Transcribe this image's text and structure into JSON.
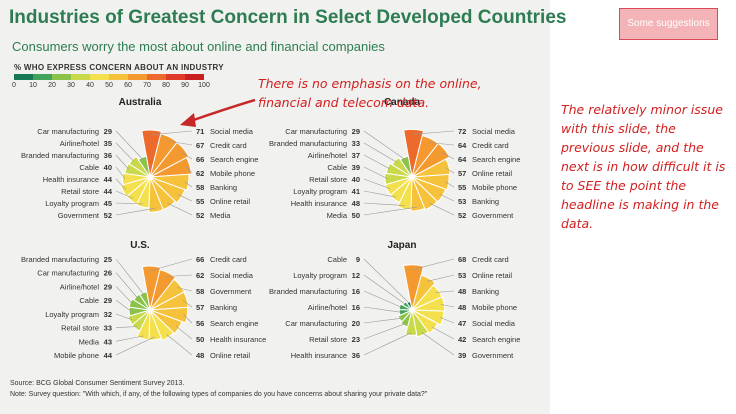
{
  "figure": {
    "title": "Industries of Greatest Concern in Select Developed Countries",
    "subtitle": "Consumers worry the most about online and financial companies",
    "scale_label": "% WHO EXPRESS CONCERN ABOUT AN INDUSTRY",
    "scale_ticks": [
      "0",
      "10",
      "20",
      "30",
      "40",
      "50",
      "60",
      "70",
      "80",
      "90",
      "100"
    ],
    "scale_colors": [
      "#157a54",
      "#43a35c",
      "#8bc34a",
      "#c9d94a",
      "#f4e04d",
      "#f6c23b",
      "#f3992f",
      "#ec6a2c",
      "#e03a2a",
      "#c91f1f"
    ],
    "source": "Source: BCG Global Consumer Sentiment Survey 2013.",
    "note": "Note: Survey question: \"With which, if any, of the following types of companies do you have concerns about sharing your private data?\""
  },
  "annotations": {
    "suggest_button": "Some suggestions",
    "chart_note": "There is no emphasis on the online, financial and telecom data.",
    "side_note": "The relatively minor issue with this slide, the previous slide, and the next is in how difficult it is to SEE the point the headline is making in the data."
  },
  "chart_data": [
    {
      "type": "polar-bar",
      "title": "Australia",
      "left": [
        {
          "label": "Car manufacturing",
          "value": 29
        },
        {
          "label": "Airline/hotel",
          "value": 35
        },
        {
          "label": "Branded manufacturing",
          "value": 36
        },
        {
          "label": "Cable",
          "value": 40
        },
        {
          "label": "Health insurance",
          "value": 44
        },
        {
          "label": "Retail store",
          "value": 44
        },
        {
          "label": "Loyalty program",
          "value": 45
        },
        {
          "label": "Government",
          "value": 52
        }
      ],
      "right": [
        {
          "label": "Social media",
          "value": 71
        },
        {
          "label": "Credit card",
          "value": 67
        },
        {
          "label": "Search engine",
          "value": 66
        },
        {
          "label": "Mobile phone",
          "value": 62
        },
        {
          "label": "Banking",
          "value": 58
        },
        {
          "label": "Online retail",
          "value": 55
        },
        {
          "label": "Media",
          "value": 52
        }
      ]
    },
    {
      "type": "polar-bar",
      "title": "Canada",
      "left": [
        {
          "label": "Car manufacturing",
          "value": 29
        },
        {
          "label": "Branded manufacturing",
          "value": 33
        },
        {
          "label": "Airline/hotel",
          "value": 37
        },
        {
          "label": "Cable",
          "value": 39
        },
        {
          "label": "Retail store",
          "value": 40
        },
        {
          "label": "Loyalty program",
          "value": 41
        },
        {
          "label": "Health insurance",
          "value": 48
        },
        {
          "label": "Media",
          "value": 50
        }
      ],
      "right": [
        {
          "label": "Social media",
          "value": 72
        },
        {
          "label": "Credit card",
          "value": 64
        },
        {
          "label": "Search engine",
          "value": 64
        },
        {
          "label": "Online retail",
          "value": 57
        },
        {
          "label": "Mobile phone",
          "value": 55
        },
        {
          "label": "Banking",
          "value": 53
        },
        {
          "label": "Government",
          "value": 52
        }
      ]
    },
    {
      "type": "polar-bar",
      "title": "U.S.",
      "left": [
        {
          "label": "Branded manufacturing",
          "value": 25
        },
        {
          "label": "Car manufacturing",
          "value": 26
        },
        {
          "label": "Airline/hotel",
          "value": 29
        },
        {
          "label": "Cable",
          "value": 29
        },
        {
          "label": "Loyalty program",
          "value": 32
        },
        {
          "label": "Retail store",
          "value": 33
        },
        {
          "label": "Media",
          "value": 43
        },
        {
          "label": "Mobile phone",
          "value": 44
        }
      ],
      "right": [
        {
          "label": "Credit card",
          "value": 66
        },
        {
          "label": "Social media",
          "value": 62
        },
        {
          "label": "Government",
          "value": 58
        },
        {
          "label": "Banking",
          "value": 57
        },
        {
          "label": "Search engine",
          "value": 56
        },
        {
          "label": "Health insurance",
          "value": 50
        },
        {
          "label": "Online retail",
          "value": 48
        }
      ]
    },
    {
      "type": "polar-bar",
      "title": "Japan",
      "left": [
        {
          "label": "Cable",
          "value": 9
        },
        {
          "label": "Loyalty program",
          "value": 12
        },
        {
          "label": "Branded manufacturing",
          "value": 16
        },
        {
          "label": "Airline/hotel",
          "value": 16
        },
        {
          "label": "Car manufacturing",
          "value": 20
        },
        {
          "label": "Retail store",
          "value": 23
        },
        {
          "label": "Health insurance",
          "value": 36
        }
      ],
      "right": [
        {
          "label": "Credit card",
          "value": 68
        },
        {
          "label": "Online retail",
          "value": 53
        },
        {
          "label": "Banking",
          "value": 48
        },
        {
          "label": "Mobile phone",
          "value": 48
        },
        {
          "label": "Social media",
          "value": 47
        },
        {
          "label": "Search engine",
          "value": 42
        },
        {
          "label": "Government",
          "value": 39
        }
      ]
    }
  ]
}
